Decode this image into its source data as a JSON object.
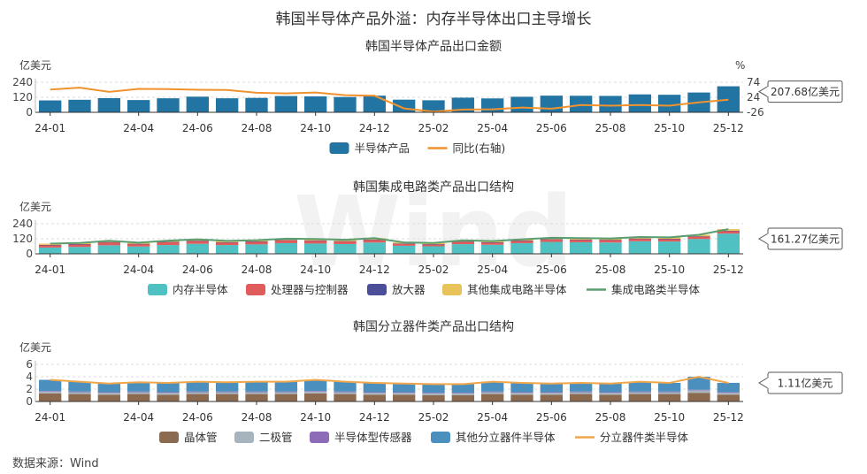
{
  "main_title": "韩国半导体产品外溢：内存半导体出口主导增长",
  "source": "数据来源：Wind",
  "watermark": "Wind",
  "chart_data": [
    {
      "type": "bar",
      "title": "韩国半导体产品出口金额",
      "ylabel": "亿美元",
      "y2label": "%",
      "ylim": [
        0,
        240
      ],
      "yticks": [
        "0",
        "120",
        "240"
      ],
      "y2lim": [
        -26,
        74
      ],
      "y2ticks": [
        "-26",
        "24",
        "74"
      ],
      "months": [
        "24-01",
        "24-02",
        "24-03",
        "24-04",
        "24-05",
        "24-06",
        "24-07",
        "24-08",
        "24-09",
        "24-10",
        "24-11",
        "24-12",
        "25-01",
        "25-02",
        "25-03",
        "25-04",
        "25-05",
        "25-06",
        "25-07",
        "25-08",
        "25-09",
        "25-10",
        "25-11",
        "25-12"
      ],
      "xlabels": [
        "24-01",
        "",
        "",
        "24-04",
        "",
        "24-06",
        "",
        "24-08",
        "",
        "24-10",
        "",
        "24-12",
        "",
        "25-02",
        "",
        "25-04",
        "",
        "25-06",
        "",
        "25-08",
        "",
        "25-10",
        "",
        "25-12"
      ],
      "series": [
        {
          "name": "半导体产品",
          "kind": "bar",
          "color": "#2275a3",
          "values": [
            95,
            100,
            113,
            98,
            112,
            125,
            112,
            115,
            130,
            127,
            122,
            133,
            101,
            96,
            117,
            111,
            124,
            133,
            132,
            131,
            143,
            140,
            158,
            207.68
          ]
        },
        {
          "name": "同比(右轴)",
          "kind": "line",
          "axis": "right",
          "color": "#f0922e",
          "values": [
            50,
            56,
            42,
            52,
            51,
            49,
            48,
            39,
            37,
            40,
            31,
            29,
            -13,
            -24,
            -17,
            -16,
            -10,
            -14,
            -2,
            -4,
            -2,
            -4,
            7,
            16
          ]
        }
      ],
      "callout": "207.68亿美元",
      "grid": true,
      "legend": "bottom"
    },
    {
      "type": "bar",
      "stacked": true,
      "title": "韩国集成电路类产品出口结构",
      "ylabel": "亿美元",
      "ylim": [
        0,
        240
      ],
      "yticks": [
        "0",
        "120",
        "240"
      ],
      "months": [
        "24-01",
        "24-02",
        "24-03",
        "24-04",
        "24-05",
        "24-06",
        "24-07",
        "24-08",
        "24-09",
        "24-10",
        "24-11",
        "24-12",
        "25-01",
        "25-02",
        "25-03",
        "25-04",
        "25-05",
        "25-06",
        "25-07",
        "25-08",
        "25-09",
        "25-10",
        "25-11",
        "25-12"
      ],
      "xlabels": [
        "24-01",
        "",
        "",
        "24-04",
        "",
        "24-06",
        "",
        "24-08",
        "",
        "24-10",
        "",
        "24-12",
        "",
        "25-02",
        "",
        "25-04",
        "",
        "25-06",
        "",
        "25-08",
        "",
        "25-10",
        "",
        "25-12"
      ],
      "series": [
        {
          "name": "内存半导体",
          "kind": "bar",
          "color": "#4fc1c2",
          "values": [
            50,
            55,
            68,
            58,
            70,
            80,
            70,
            75,
            85,
            82,
            78,
            90,
            64,
            60,
            77,
            72,
            85,
            95,
            92,
            90,
            100,
            98,
            118,
            161.27
          ]
        },
        {
          "name": "处理器与控制器",
          "kind": "bar",
          "color": "#e05c5c",
          "values": [
            20,
            22,
            25,
            21,
            24,
            24,
            22,
            23,
            24,
            24,
            22,
            23,
            17,
            16,
            20,
            19,
            20,
            21,
            21,
            21,
            21,
            21,
            21,
            22
          ]
        },
        {
          "name": "放大器",
          "kind": "bar",
          "color": "#4b4f9a",
          "values": [
            1,
            1,
            1,
            1,
            1,
            1,
            1,
            1,
            1,
            1,
            1,
            1,
            1,
            1,
            1,
            1,
            1,
            1,
            1,
            1,
            1,
            1,
            1,
            1
          ]
        },
        {
          "name": "其他集成电路半导体",
          "kind": "bar",
          "color": "#e8c35a",
          "values": [
            10,
            9,
            10,
            9,
            10,
            11,
            10,
            10,
            11,
            11,
            11,
            11,
            9,
            9,
            10,
            10,
            10,
            11,
            11,
            11,
            12,
            11,
            12,
            13
          ]
        },
        {
          "name": "集成电路类半导体",
          "kind": "line",
          "color": "#5a9e6f",
          "values": [
            81,
            87,
            104,
            89,
            105,
            116,
            103,
            109,
            121,
            118,
            112,
            125,
            91,
            86,
            108,
            102,
            116,
            128,
            125,
            123,
            134,
            131,
            152,
            197
          ]
        }
      ],
      "callout": "161.27亿美元",
      "grid": true,
      "legend": "bottom"
    },
    {
      "type": "bar",
      "stacked": true,
      "title": "韩国分立器件类产品出口结构",
      "ylabel": "亿美元",
      "ylim": [
        0,
        6
      ],
      "yticks": [
        "0",
        "2",
        "4",
        "6"
      ],
      "months": [
        "24-01",
        "24-02",
        "24-03",
        "24-04",
        "24-05",
        "24-06",
        "24-07",
        "24-08",
        "24-09",
        "24-10",
        "24-11",
        "24-12",
        "25-01",
        "25-02",
        "25-03",
        "25-04",
        "25-05",
        "25-06",
        "25-07",
        "25-08",
        "25-09",
        "25-10",
        "25-11",
        "25-12"
      ],
      "xlabels": [
        "24-01",
        "",
        "",
        "24-04",
        "",
        "24-06",
        "",
        "24-08",
        "",
        "24-10",
        "",
        "24-12",
        "",
        "25-02",
        "",
        "25-04",
        "",
        "25-06",
        "",
        "25-08",
        "",
        "25-10",
        "",
        "25-12"
      ],
      "series": [
        {
          "name": "晶体管",
          "kind": "bar",
          "color": "#8b6a4f",
          "values": [
            1.3,
            1.2,
            1.1,
            1.2,
            1.1,
            1.2,
            1.2,
            1.2,
            1.2,
            1.3,
            1.2,
            1.1,
            1.1,
            1.0,
            1.0,
            1.2,
            1.1,
            1.1,
            1.2,
            1.1,
            1.2,
            1.2,
            1.4,
            1.11
          ]
        },
        {
          "name": "二极管",
          "kind": "bar",
          "color": "#a7b3bd",
          "values": [
            0.3,
            0.3,
            0.3,
            0.3,
            0.3,
            0.3,
            0.3,
            0.3,
            0.3,
            0.3,
            0.3,
            0.3,
            0.3,
            0.3,
            0.3,
            0.3,
            0.3,
            0.3,
            0.3,
            0.3,
            0.3,
            0.3,
            0.4,
            0.3
          ]
        },
        {
          "name": "半导体型传感器",
          "kind": "bar",
          "color": "#8e6bb8",
          "values": [
            0.1,
            0.1,
            0.1,
            0.1,
            0.1,
            0.1,
            0.1,
            0.1,
            0.1,
            0.1,
            0.1,
            0.1,
            0.1,
            0.1,
            0.1,
            0.1,
            0.1,
            0.1,
            0.1,
            0.1,
            0.1,
            0.1,
            0.1,
            0.1
          ]
        },
        {
          "name": "其他分立器件半导体",
          "kind": "bar",
          "color": "#4b8fbf",
          "values": [
            1.8,
            1.6,
            1.4,
            1.5,
            1.5,
            1.6,
            1.5,
            1.6,
            1.6,
            1.8,
            1.6,
            1.5,
            1.4,
            1.4,
            1.4,
            1.6,
            1.5,
            1.4,
            1.4,
            1.4,
            1.6,
            1.4,
            2.1,
            1.5
          ]
        },
        {
          "name": "分立器件类半导体",
          "kind": "line",
          "color": "#f0a64a",
          "values": [
            3.5,
            3.2,
            2.9,
            3.1,
            3.0,
            3.2,
            3.1,
            3.2,
            3.2,
            3.5,
            3.2,
            3.0,
            2.9,
            2.8,
            2.8,
            3.2,
            3.0,
            2.9,
            3.0,
            2.9,
            3.2,
            3.0,
            4.0,
            3.0
          ]
        }
      ],
      "callout": "1.11亿美元",
      "grid": true,
      "legend": "bottom"
    }
  ]
}
